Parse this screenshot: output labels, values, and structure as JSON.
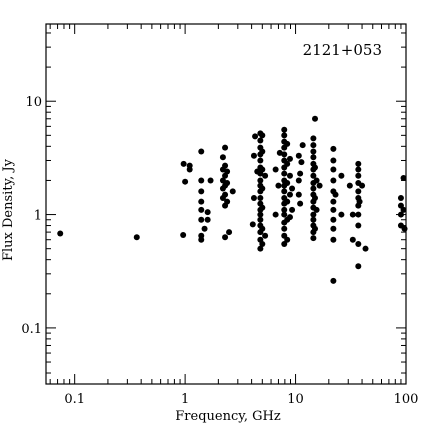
{
  "chart_data": {
    "type": "scatter",
    "title": "",
    "annotation": "2121+053",
    "xlabel": "Frequency, GHz",
    "ylabel": "Flux Density, Jy",
    "xscale": "log",
    "yscale": "log",
    "xlim": [
      0.055,
      100
    ],
    "ylim": [
      0.032,
      48
    ],
    "x_ticks": [
      {
        "value": 0.1,
        "label": "0.1"
      },
      {
        "value": 1,
        "label": "1"
      },
      {
        "value": 10,
        "label": "10"
      },
      {
        "value": 100,
        "label": "100"
      }
    ],
    "y_ticks": [
      {
        "value": 0.1,
        "label": "0.1"
      },
      {
        "value": 1,
        "label": "1"
      },
      {
        "value": 10,
        "label": "10"
      }
    ],
    "grid": false,
    "marker_color": "#000000",
    "points": [
      [
        0.074,
        0.68
      ],
      [
        0.365,
        0.63
      ],
      [
        0.96,
        0.66
      ],
      [
        0.97,
        2.8
      ],
      [
        1.0,
        1.95
      ],
      [
        1.1,
        2.5
      ],
      [
        1.1,
        2.7
      ],
      [
        1.4,
        0.6
      ],
      [
        1.4,
        0.65
      ],
      [
        1.4,
        0.9
      ],
      [
        1.4,
        1.1
      ],
      [
        1.4,
        1.3
      ],
      [
        1.4,
        1.6
      ],
      [
        1.4,
        2.0
      ],
      [
        1.4,
        3.6
      ],
      [
        1.5,
        0.75
      ],
      [
        1.6,
        0.9
      ],
      [
        1.6,
        1.05
      ],
      [
        1.7,
        2.0
      ],
      [
        2.2,
        1.4
      ],
      [
        2.2,
        1.7
      ],
      [
        2.2,
        2.0
      ],
      [
        2.2,
        2.5
      ],
      [
        2.2,
        3.2
      ],
      [
        2.3,
        1.2
      ],
      [
        2.3,
        1.5
      ],
      [
        2.3,
        1.8
      ],
      [
        2.3,
        2.2
      ],
      [
        2.3,
        2.7
      ],
      [
        2.3,
        3.9
      ],
      [
        2.3,
        0.63
      ],
      [
        2.4,
        1.3
      ],
      [
        2.4,
        1.9
      ],
      [
        2.4,
        2.4
      ],
      [
        2.5,
        0.7
      ],
      [
        2.7,
        1.6
      ],
      [
        4.1,
        0.82
      ],
      [
        4.2,
        1.4
      ],
      [
        4.2,
        3.3
      ],
      [
        4.3,
        4.9
      ],
      [
        4.5,
        2.4
      ],
      [
        4.8,
        0.5
      ],
      [
        4.8,
        0.6
      ],
      [
        4.8,
        0.7
      ],
      [
        4.8,
        0.8
      ],
      [
        4.8,
        0.9
      ],
      [
        4.8,
        1.0
      ],
      [
        4.8,
        1.1
      ],
      [
        4.8,
        1.25
      ],
      [
        4.8,
        1.4
      ],
      [
        4.8,
        1.6
      ],
      [
        4.8,
        1.8
      ],
      [
        4.8,
        2.0
      ],
      [
        4.8,
        2.3
      ],
      [
        4.8,
        2.6
      ],
      [
        4.8,
        3.0
      ],
      [
        4.8,
        3.4
      ],
      [
        4.8,
        3.9
      ],
      [
        4.8,
        4.5
      ],
      [
        4.8,
        5.2
      ],
      [
        5.0,
        0.55
      ],
      [
        5.0,
        0.75
      ],
      [
        5.0,
        1.15
      ],
      [
        5.0,
        1.7
      ],
      [
        5.0,
        2.5
      ],
      [
        5.0,
        3.6
      ],
      [
        5.0,
        5.0
      ],
      [
        5.3,
        0.65
      ],
      [
        5.3,
        2.2
      ],
      [
        6.6,
        1.0
      ],
      [
        6.6,
        2.5
      ],
      [
        7.0,
        1.8
      ],
      [
        7.2,
        3.5
      ],
      [
        7.9,
        0.55
      ],
      [
        7.9,
        0.65
      ],
      [
        7.9,
        0.75
      ],
      [
        7.9,
        0.85
      ],
      [
        7.9,
        1.0
      ],
      [
        7.9,
        1.1
      ],
      [
        7.9,
        1.25
      ],
      [
        7.9,
        1.4
      ],
      [
        7.9,
        1.6
      ],
      [
        7.9,
        1.8
      ],
      [
        7.9,
        2.0
      ],
      [
        7.9,
        2.3
      ],
      [
        7.9,
        2.6
      ],
      [
        7.9,
        3.0
      ],
      [
        7.9,
        3.4
      ],
      [
        7.9,
        3.9
      ],
      [
        7.9,
        4.4
      ],
      [
        7.9,
        5.0
      ],
      [
        7.9,
        5.6
      ],
      [
        8.4,
        0.6
      ],
      [
        8.4,
        0.9
      ],
      [
        8.4,
        1.3
      ],
      [
        8.4,
        1.9
      ],
      [
        8.4,
        2.8
      ],
      [
        8.4,
        4.2
      ],
      [
        8.9,
        0.95
      ],
      [
        8.9,
        1.5
      ],
      [
        8.9,
        2.2
      ],
      [
        8.9,
        3.1
      ],
      [
        9.3,
        1.1
      ],
      [
        9.3,
        1.7
      ],
      [
        10.7,
        1.5
      ],
      [
        10.7,
        2.0
      ],
      [
        10.7,
        3.3
      ],
      [
        11.0,
        1.25
      ],
      [
        11.0,
        2.3
      ],
      [
        11.3,
        2.9
      ],
      [
        11.6,
        4.1
      ],
      [
        14.5,
        0.62
      ],
      [
        14.5,
        0.7
      ],
      [
        14.5,
        0.8
      ],
      [
        14.5,
        0.9
      ],
      [
        14.5,
        1.0
      ],
      [
        14.5,
        1.15
      ],
      [
        14.5,
        1.3
      ],
      [
        14.5,
        1.5
      ],
      [
        14.5,
        1.7
      ],
      [
        14.5,
        1.9
      ],
      [
        14.5,
        2.2
      ],
      [
        14.5,
        2.5
      ],
      [
        14.5,
        2.8
      ],
      [
        14.5,
        3.2
      ],
      [
        14.5,
        3.6
      ],
      [
        14.5,
        4.1
      ],
      [
        14.5,
        4.7
      ],
      [
        15.0,
        0.75
      ],
      [
        15.0,
        1.4
      ],
      [
        15.0,
        2.6
      ],
      [
        15.0,
        7.0
      ],
      [
        15.5,
        1.1
      ],
      [
        15.5,
        2.0
      ],
      [
        16.5,
        1.8
      ],
      [
        22.0,
        0.26
      ],
      [
        22.0,
        0.6
      ],
      [
        22.0,
        0.75
      ],
      [
        22.0,
        0.9
      ],
      [
        22.0,
        1.1
      ],
      [
        22.0,
        1.3
      ],
      [
        22.0,
        1.6
      ],
      [
        22.0,
        2.0
      ],
      [
        22.0,
        2.5
      ],
      [
        22.0,
        3.0
      ],
      [
        22.0,
        3.8
      ],
      [
        23.0,
        1.5
      ],
      [
        26.0,
        2.2
      ],
      [
        26.0,
        1.0
      ],
      [
        31.0,
        1.8
      ],
      [
        33.0,
        0.6
      ],
      [
        33.0,
        1.0
      ],
      [
        37.0,
        0.35
      ],
      [
        37.0,
        0.55
      ],
      [
        37.0,
        0.8
      ],
      [
        37.0,
        1.0
      ],
      [
        37.0,
        1.2
      ],
      [
        37.0,
        1.4
      ],
      [
        37.0,
        1.6
      ],
      [
        37.0,
        1.9
      ],
      [
        37.0,
        2.2
      ],
      [
        37.0,
        2.5
      ],
      [
        37.0,
        2.8
      ],
      [
        38.0,
        1.3
      ],
      [
        40.0,
        1.8
      ],
      [
        43.0,
        0.5
      ],
      [
        90.0,
        0.8
      ],
      [
        90.0,
        1.0
      ],
      [
        90.0,
        1.2
      ],
      [
        90.0,
        1.4
      ],
      [
        95.0,
        1.1
      ],
      [
        95.0,
        2.1
      ],
      [
        97.0,
        0.75
      ]
    ]
  }
}
